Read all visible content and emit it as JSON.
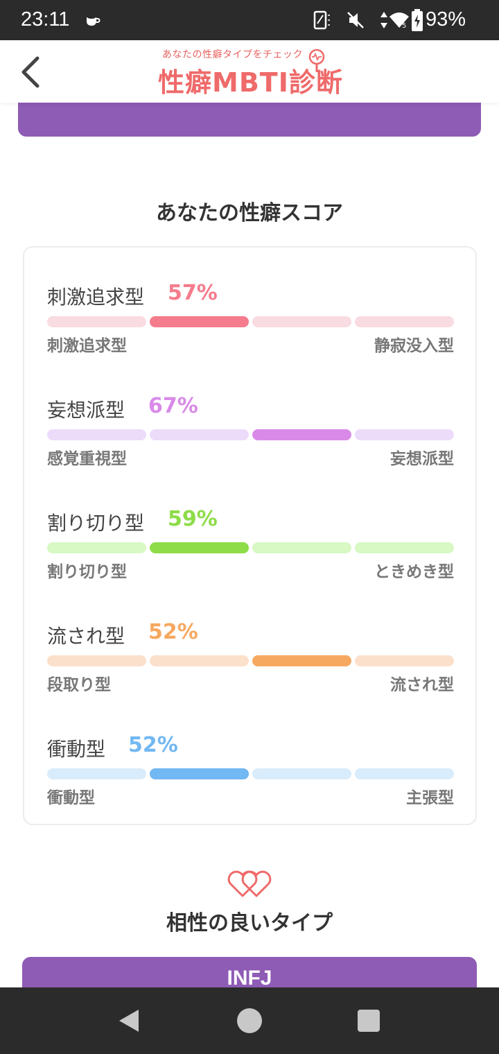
{
  "status_bar": {
    "time": "23:11",
    "battery": "93%",
    "icons": [
      "coffee-icon",
      "screen-rotate-icon",
      "vibrate-off-icon",
      "data-arrows-icon",
      "wifi-icon",
      "battery-charging-icon"
    ]
  },
  "header": {
    "back_icon": "chevron-left-icon",
    "logo_subtitle": "あなたの性癖タイプをチェック",
    "logo_title": "性癖MBTI診断"
  },
  "score_section": {
    "title": "あなたの性癖スコア",
    "items": [
      {
        "name": "刺激追求型",
        "percent": "57%",
        "left": "刺激追求型",
        "right": "静寂没入型",
        "active_segment": 1,
        "color": "#f47c8c",
        "light": "#f9dbe2"
      },
      {
        "name": "妄想派型",
        "percent": "67%",
        "left": "感覚重視型",
        "right": "妄想派型",
        "active_segment": 2,
        "color": "#d98ae8",
        "light": "#ecdcfa"
      },
      {
        "name": "割り切り型",
        "percent": "59%",
        "left": "割り切り型",
        "right": "ときめき型",
        "active_segment": 1,
        "color": "#8edc48",
        "light": "#d8f8c4"
      },
      {
        "name": "流され型",
        "percent": "52%",
        "left": "段取り型",
        "right": "流され型",
        "active_segment": 2,
        "color": "#f6a860",
        "light": "#fbe0cc"
      },
      {
        "name": "衝動型",
        "percent": "52%",
        "left": "衝動型",
        "right": "主張型",
        "active_segment": 1,
        "color": "#72b8f2",
        "light": "#d9ecfb"
      }
    ]
  },
  "compat_section": {
    "icon": "double-heart-icon",
    "title": "相性の良いタイプ",
    "type_label": "INFJ"
  },
  "nav_bar": {
    "icons": [
      "nav-back-icon",
      "nav-home-icon",
      "nav-recents-icon"
    ]
  },
  "colors": {
    "accent_purple": "#8e5bb5",
    "logo_red": "#ef6a6a"
  }
}
